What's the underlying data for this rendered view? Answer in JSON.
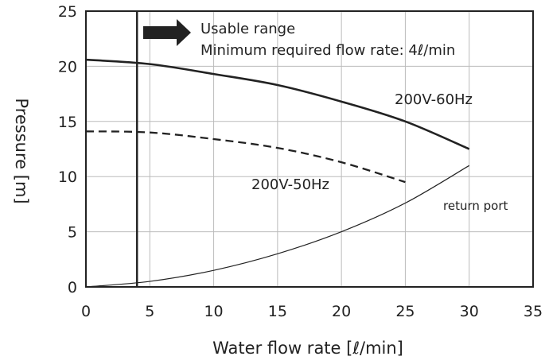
{
  "chart_data": {
    "type": "line",
    "title": "",
    "xlabel": "Water flow rate [ℓ/min]",
    "ylabel": "Pressure [m]",
    "xlim": [
      0,
      35
    ],
    "ylim": [
      0,
      25
    ],
    "xticks": [
      0,
      5,
      10,
      15,
      20,
      25,
      30,
      35
    ],
    "yticks": [
      0,
      5,
      10,
      15,
      20,
      25
    ],
    "grid": true,
    "series": [
      {
        "name": "200V-60Hz",
        "style": "solid-bold",
        "x": [
          0,
          5,
          10,
          15,
          20,
          25,
          30
        ],
        "y": [
          20.6,
          20.2,
          19.3,
          18.3,
          16.8,
          15.0,
          12.5
        ]
      },
      {
        "name": "200V-50Hz",
        "style": "dashed-bold",
        "x": [
          0,
          5,
          10,
          15,
          20,
          25
        ],
        "y": [
          14.1,
          14.0,
          13.4,
          12.6,
          11.3,
          9.5
        ]
      },
      {
        "name": "return port",
        "style": "solid-thin",
        "x": [
          0,
          5,
          10,
          15,
          20,
          25,
          30
        ],
        "y": [
          0,
          0.5,
          1.5,
          3.0,
          5.0,
          7.6,
          11.0
        ]
      }
    ],
    "min_required_flow": 4,
    "annotations": {
      "usable_range": "Usable range",
      "min_flow": "Minimum required flow rate: 4ℓ/min",
      "label_60hz": "200V-60Hz",
      "label_50hz": "200V-50Hz",
      "label_return": "return port"
    }
  }
}
